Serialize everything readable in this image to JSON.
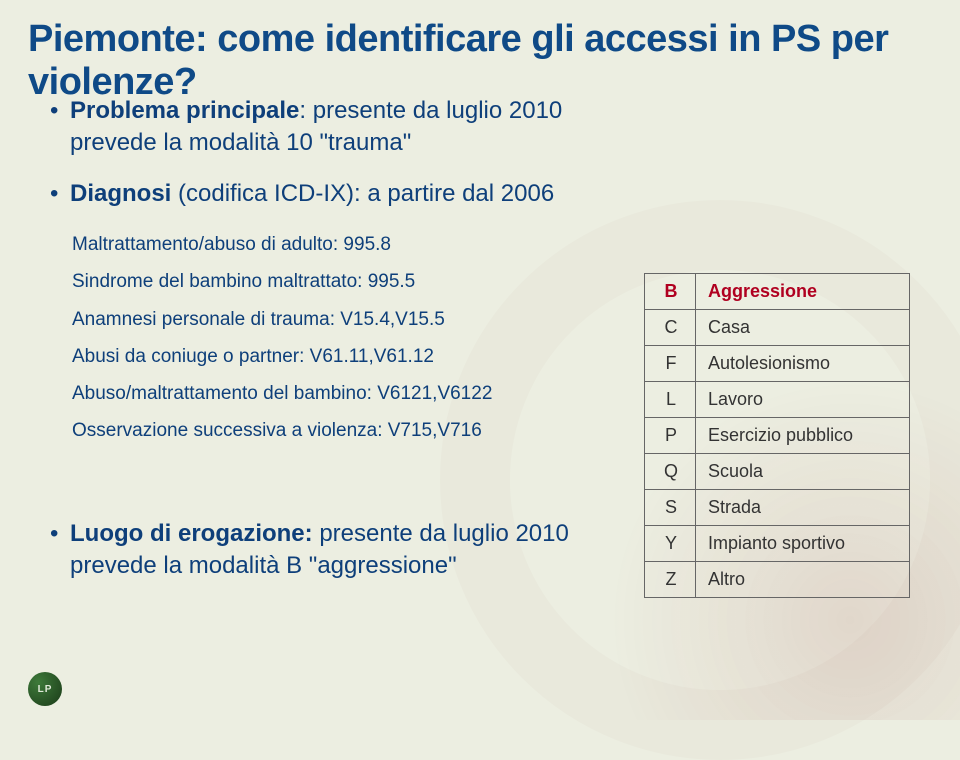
{
  "title": "Piemonte: come identificare gli accessi in PS per violenze?",
  "bullets": {
    "b1_strong": "Problema principale",
    "b1_rest": ": presente da luglio 2010 prevede la modalità 10 \"trauma\"",
    "b2_strong": "Diagnosi",
    "b2_rest": " (codifica ICD-IX): a partire dal 2006"
  },
  "sublist": [
    "Maltrattamento/abuso di adulto: 995.8",
    "Sindrome del bambino maltrattato: 995.5",
    "Anamnesi personale di trauma: V15.4,V15.5",
    "Abusi da coniuge o partner: V61.11,V61.12",
    "Abuso/maltrattamento del bambino: V6121,V6122",
    "Osservazione successiva a violenza: V715,V716"
  ],
  "bullets2": {
    "b3_strong": "Luogo di erogazione:",
    "b3_rest": " presente da luglio 2010 prevede la modalità B \"aggressione\""
  },
  "table": {
    "highlight_row_index": 0,
    "rows": [
      {
        "code": "B",
        "label": "Aggressione"
      },
      {
        "code": "C",
        "label": "Casa"
      },
      {
        "code": "F",
        "label": "Autolesionismo"
      },
      {
        "code": "L",
        "label": "Lavoro"
      },
      {
        "code": "P",
        "label": "Esercizio pubblico"
      },
      {
        "code": "Q",
        "label": "Scuola"
      },
      {
        "code": "S",
        "label": "Strada"
      },
      {
        "code": "Y",
        "label": "Impianto sportivo"
      },
      {
        "code": "Z",
        "label": "Altro"
      }
    ]
  },
  "logo_text": "LP",
  "colors": {
    "title": "#0f4a87",
    "body": "#0e3f7a",
    "highlight": "#b00020",
    "background": "#eceee1"
  },
  "fonts": {
    "title_size_pt": 28,
    "body_size_pt": 18,
    "sublist_size_pt": 14,
    "table_size_pt": 13
  }
}
